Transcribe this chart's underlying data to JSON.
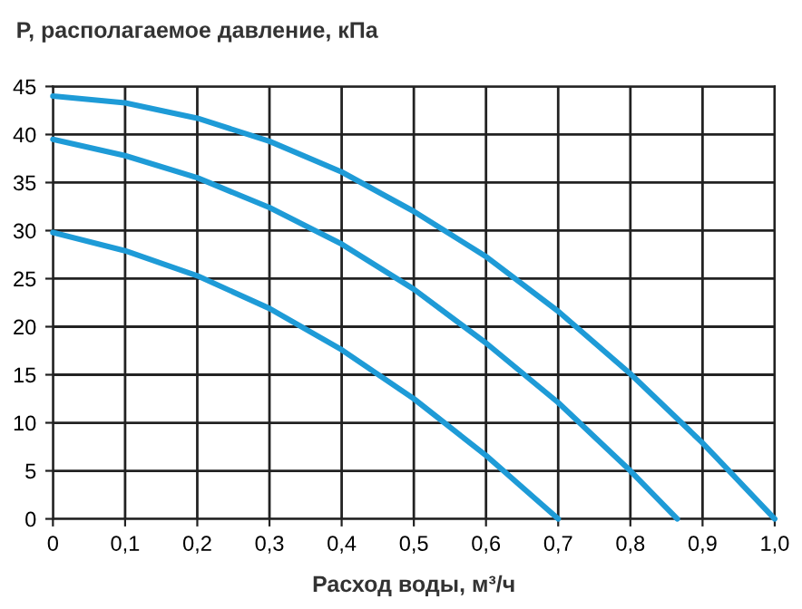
{
  "chart_data": {
    "type": "line",
    "ylabel": "P, располагаемое давление, кПа",
    "xlabel": "Расход воды, м³/ч",
    "series": [
      {
        "color": "#1e9bd7",
        "x": [
          0,
          0.1,
          0.2,
          0.3,
          0.4,
          0.5,
          0.6,
          0.7,
          0.8,
          0.9,
          1.0
        ],
        "values": [
          44,
          43.3,
          41.7,
          39.3,
          36.1,
          32,
          27.3,
          21.6,
          15.1,
          7.9,
          0
        ]
      },
      {
        "color": "#1e9bd7",
        "x": [
          0,
          0.1,
          0.2,
          0.3,
          0.4,
          0.5,
          0.6,
          0.7,
          0.8,
          0.865
        ],
        "values": [
          39.5,
          37.8,
          35.5,
          32.4,
          28.6,
          23.9,
          18.3,
          12.1,
          5,
          0
        ]
      },
      {
        "color": "#1e9bd7",
        "x": [
          0,
          0.1,
          0.2,
          0.3,
          0.4,
          0.5,
          0.6,
          0.7
        ],
        "values": [
          29.8,
          27.9,
          25.3,
          21.9,
          17.6,
          12.5,
          6.6,
          0
        ]
      }
    ],
    "xlim": [
      0,
      1.0
    ],
    "ylim": [
      0,
      45
    ],
    "xticks": [
      0,
      {
        "value": 0.1,
        "label": "0,1"
      },
      {
        "value": 0.2,
        "label": "0,2"
      },
      {
        "value": 0.3,
        "label": "0,3"
      },
      {
        "value": 0.4,
        "label": "0,4"
      },
      {
        "value": 0.5,
        "label": "0,5"
      },
      {
        "value": 0.6,
        "label": "0,6"
      },
      {
        "value": 0.7,
        "label": "0,7"
      },
      {
        "value": 0.8,
        "label": "0,8"
      },
      {
        "value": 0.9,
        "label": "0,9"
      },
      {
        "value": 1.0,
        "label": "1,0"
      }
    ],
    "yticks": [
      0,
      5,
      10,
      15,
      20,
      25,
      30,
      35,
      40,
      45
    ],
    "grid": true,
    "line_style": "solid",
    "marker": "none"
  }
}
